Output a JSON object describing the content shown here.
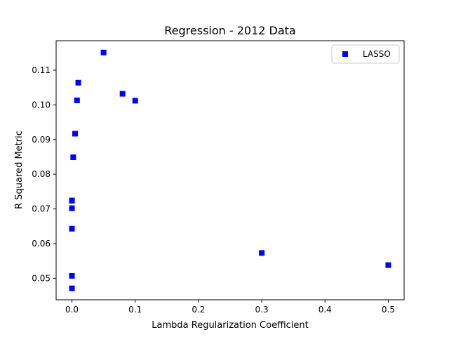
{
  "chart_data": {
    "type": "scatter",
    "title": "Regression - 2012 Data",
    "xlabel": "Lambda Regularization Coefficient",
    "ylabel": "R Squared Metric",
    "xlim": [
      -0.025,
      0.525
    ],
    "ylim": [
      0.0438,
      0.1185
    ],
    "xticks": [
      0.0,
      0.1,
      0.2,
      0.3,
      0.4,
      0.5
    ],
    "xtick_labels": [
      "0.0",
      "0.1",
      "0.2",
      "0.3",
      "0.4",
      "0.5"
    ],
    "yticks": [
      0.05,
      0.06,
      0.07,
      0.08,
      0.09,
      0.1,
      0.11
    ],
    "ytick_labels": [
      "0.05",
      "0.06",
      "0.07",
      "0.08",
      "0.09",
      "0.10",
      "0.11"
    ],
    "grid": false,
    "legend": "upper right",
    "series": [
      {
        "name": "LASSO",
        "color": "#0000ff",
        "marker": "square",
        "x": [
          0.0,
          0.0,
          0.0,
          0.0,
          0.0,
          0.0,
          0.002,
          0.005,
          0.008,
          0.01,
          0.05,
          0.08,
          0.1,
          0.3,
          0.5
        ],
        "y": [
          0.0471,
          0.0507,
          0.0643,
          0.0702,
          0.0724,
          0.0724,
          0.0849,
          0.0917,
          0.1013,
          0.1064,
          0.1151,
          0.1032,
          0.1012,
          0.0573,
          0.0538
        ]
      }
    ]
  }
}
